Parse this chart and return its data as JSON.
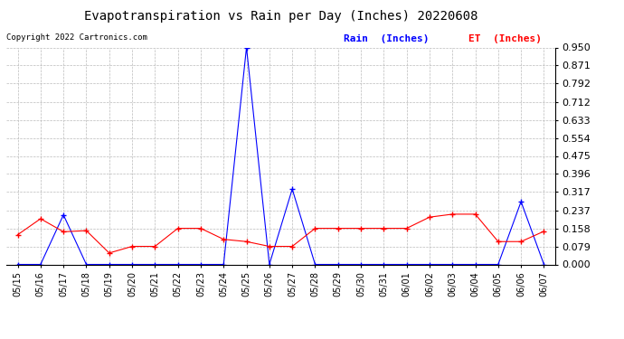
{
  "title": "Evapotranspiration vs Rain per Day (Inches) 20220608",
  "copyright": "Copyright 2022 Cartronics.com",
  "legend_rain": "Rain  (Inches)",
  "legend_et": "ET  (Inches)",
  "dates": [
    "05/15",
    "05/16",
    "05/17",
    "05/18",
    "05/19",
    "05/20",
    "05/21",
    "05/22",
    "05/23",
    "05/24",
    "05/25",
    "05/26",
    "05/27",
    "05/28",
    "05/29",
    "05/30",
    "05/31",
    "06/01",
    "06/02",
    "06/03",
    "06/04",
    "06/05",
    "06/06",
    "06/07"
  ],
  "rain": [
    0.0,
    0.0,
    0.217,
    0.0,
    0.0,
    0.0,
    0.0,
    0.0,
    0.0,
    0.0,
    0.95,
    0.0,
    0.33,
    0.0,
    0.0,
    0.0,
    0.0,
    0.0,
    0.0,
    0.0,
    0.0,
    0.0,
    0.275,
    0.0
  ],
  "et": [
    0.13,
    0.2,
    0.143,
    0.148,
    0.05,
    0.079,
    0.079,
    0.158,
    0.158,
    0.11,
    0.1,
    0.079,
    0.079,
    0.158,
    0.158,
    0.158,
    0.158,
    0.158,
    0.207,
    0.22,
    0.22,
    0.1,
    0.1,
    0.145
  ],
  "ylim": [
    0.0,
    0.95
  ],
  "yticks": [
    0.0,
    0.079,
    0.158,
    0.237,
    0.317,
    0.396,
    0.475,
    0.554,
    0.633,
    0.712,
    0.792,
    0.871,
    0.95
  ],
  "rain_color": "#0000ff",
  "et_color": "#ff0000",
  "title_color": "#000000",
  "bg_color": "#ffffff",
  "grid_color": "#bbbbbb",
  "legend_rain_color": "#0000ff",
  "legend_et_color": "#ff0000",
  "title_fontsize": 10,
  "tick_fontsize": 8,
  "xtick_fontsize": 7
}
